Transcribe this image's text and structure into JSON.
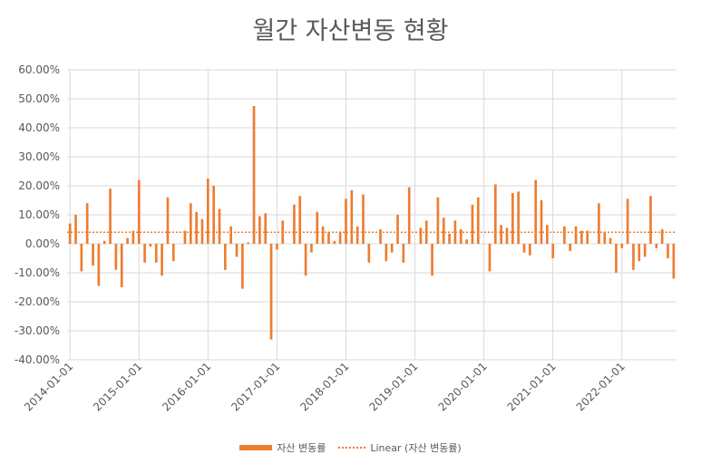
{
  "chart_data": {
    "type": "bar",
    "title": "월간 자산변동 현황",
    "xlabel": "",
    "ylabel": "",
    "ylim": [
      -0.4,
      0.6
    ],
    "y_tick_labels": [
      "60.00%",
      "50.00%",
      "40.00%",
      "30.00%",
      "20.00%",
      "10.00%",
      "0.00%",
      "-10.00%",
      "-20.00%",
      "-30.00%",
      "-40.00%"
    ],
    "x_tick_labels": [
      "2014-01-01",
      "2015-01-01",
      "2016-01-01",
      "2017-01-01",
      "2018-01-01",
      "2019-01-01",
      "2020-01-01",
      "2021-01-01",
      "2022-01-01"
    ],
    "start_month": "2014-01",
    "grid": true,
    "legend_position": "bottom",
    "colors": {
      "bar": "#ED7D31",
      "trend": "#ED7D31",
      "grid": "#D9D9D9",
      "text": "#595959"
    },
    "series": [
      {
        "name": "자산 변동률",
        "values": [
          0.07,
          0.1,
          -0.095,
          0.14,
          -0.075,
          -0.145,
          0.01,
          0.19,
          -0.09,
          -0.15,
          0.02,
          0.045,
          0.22,
          -0.065,
          -0.01,
          -0.065,
          -0.11,
          0.16,
          -0.06,
          0.0,
          0.045,
          0.14,
          0.11,
          0.085,
          0.225,
          0.2,
          0.12,
          -0.09,
          0.06,
          -0.045,
          -0.155,
          0.005,
          0.475,
          0.095,
          0.105,
          -0.33,
          -0.02,
          0.08,
          0.0,
          0.135,
          0.165,
          -0.11,
          -0.03,
          0.11,
          0.06,
          0.04,
          0.01,
          0.04,
          0.155,
          0.185,
          0.06,
          0.17,
          -0.065,
          0.0,
          0.05,
          -0.06,
          -0.03,
          0.1,
          -0.065,
          0.195,
          0.0,
          0.055,
          0.08,
          -0.11,
          0.16,
          0.09,
          0.035,
          0.08,
          0.05,
          0.015,
          0.135,
          0.16,
          0.0,
          -0.095,
          0.205,
          0.065,
          0.055,
          0.175,
          0.18,
          -0.03,
          -0.04,
          0.22,
          0.15,
          0.065,
          -0.05,
          0.0,
          0.06,
          -0.025,
          0.06,
          0.045,
          0.045,
          0.0,
          0.14,
          0.04,
          0.02,
          -0.1,
          -0.015,
          0.155,
          -0.09,
          -0.06,
          -0.045,
          0.165,
          -0.015,
          0.05,
          -0.05,
          -0.12
        ]
      }
    ],
    "trendline": {
      "name": "Linear (자산 변동률)",
      "type": "linear",
      "start": 0.04,
      "end": 0.04
    }
  }
}
